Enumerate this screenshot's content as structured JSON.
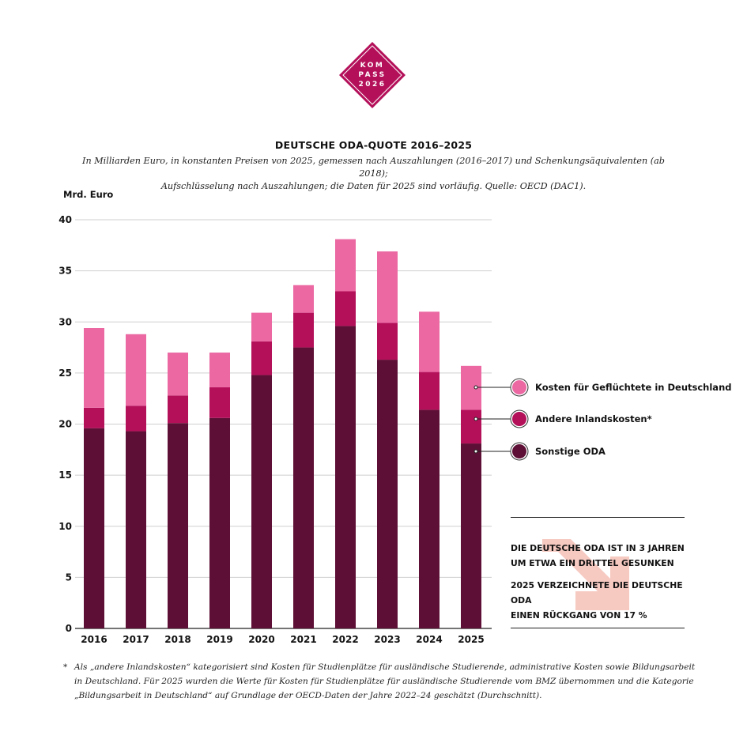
{
  "logo": {
    "lines": [
      "KOM",
      "PASS",
      "2026"
    ]
  },
  "header": {
    "title": "DEUTSCHE ODA-QUOTE 2016–2025",
    "subtitle_line1": "In Milliarden Euro, in konstanten Preisen von 2025, gemessen nach Auszahlungen (2016–2017) und Schenkungsäquivalenten (ab 2018);",
    "subtitle_line2": "Aufschlüsselung nach Auszahlungen; die Daten für 2025 sind vorläufig. Quelle: OECD (DAC1)."
  },
  "chart_data": {
    "type": "bar",
    "stacked": true,
    "ylabel": "Mrd. Euro",
    "ylim": [
      0,
      40
    ],
    "yticks": [
      0,
      5,
      10,
      15,
      20,
      25,
      30,
      35,
      40
    ],
    "grid": true,
    "categories": [
      "2016",
      "2017",
      "2018",
      "2019",
      "2020",
      "2021",
      "2022",
      "2023",
      "2024",
      "2025"
    ],
    "series": [
      {
        "name": "Sonstige ODA",
        "color": "#5e0f35",
        "values": [
          19.6,
          19.3,
          20.1,
          20.6,
          24.8,
          27.5,
          29.6,
          26.3,
          21.4,
          18.1
        ]
      },
      {
        "name": "Andere Inlandskosten*",
        "color": "#b4105a",
        "values": [
          2.0,
          2.5,
          2.7,
          3.0,
          3.3,
          3.4,
          3.4,
          3.6,
          3.7,
          3.3
        ]
      },
      {
        "name": "Kosten für Geflüchtete in Deutschland",
        "color": "#eb68a3",
        "values": [
          7.8,
          7.0,
          4.2,
          3.4,
          2.8,
          2.7,
          5.1,
          7.0,
          5.9,
          4.3
        ]
      }
    ],
    "legend": "right"
  },
  "callout": {
    "line1": "DIE DEUTSCHE ODA IST IN 3 JAHREN",
    "line2": "UM ETWA EIN DRITTEL GESUNKEN",
    "line3": "2025 VERZEICHNETE DIE DEUTSCHE ODA",
    "line4": "EINEN RÜCKGANG VON 17 %",
    "arrow_color": "#f6c9c1"
  },
  "footnote": {
    "marker": "*",
    "text": "Als „andere Inlandskosten“ kategorisiert sind Kosten für Studienplätze für ausländische Studierende, administrative Kosten sowie Bildungsarbeit in Deutschland. Für 2025 wurden die Werte für Kosten für Studienplätze für ausländische Studierende vom BMZ übernommen und die Kategorie „Bildungsarbeit in Deutschland“ auf Grundlage der OECD-Daten der Jahre 2022–24 geschätzt (Durchschnitt)."
  }
}
